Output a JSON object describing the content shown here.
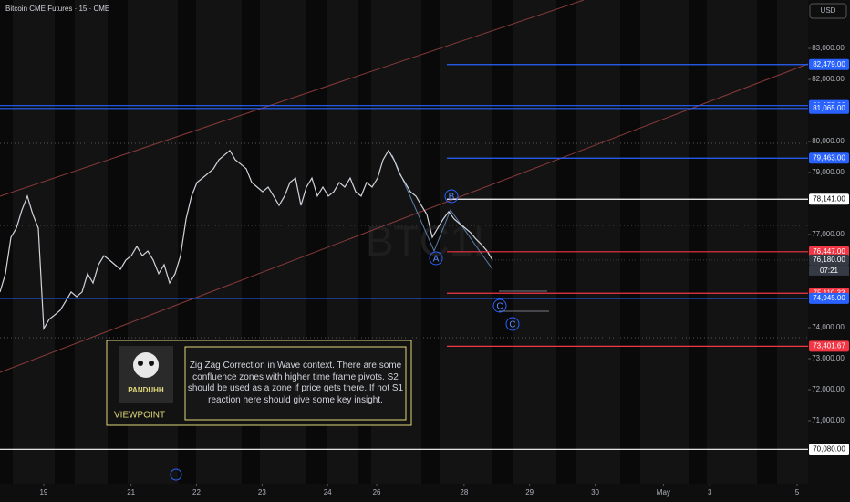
{
  "header": {
    "symbol": "Bitcoin CME Futures · 15 · CME",
    "currency": "USD",
    "watermark": "BTC1!"
  },
  "chart_data": {
    "type": "line",
    "color": "#d1d4dc",
    "xlim": [
      0,
      148
    ],
    "ylim": [
      68971,
      84559
    ],
    "xticks": [
      {
        "value": 8,
        "label": "19"
      },
      {
        "value": 24,
        "label": "21"
      },
      {
        "value": 36,
        "label": "22"
      },
      {
        "value": 48,
        "label": "23"
      },
      {
        "value": 60,
        "label": "24"
      },
      {
        "value": 69,
        "label": "26"
      },
      {
        "value": 85,
        "label": "28"
      },
      {
        "value": 97,
        "label": "29"
      },
      {
        "value": 109,
        "label": "30"
      },
      {
        "value": 121.5,
        "label": "May"
      },
      {
        "value": 130,
        "label": "3"
      },
      {
        "value": 146,
        "label": "5"
      }
    ],
    "yticks": [
      {
        "value": 83000,
        "label": "83,000.00"
      },
      {
        "value": 82000,
        "label": "82,000.00"
      },
      {
        "value": 80000,
        "label": "80,000.00"
      },
      {
        "value": 79000,
        "label": "79,000.00"
      },
      {
        "value": 77000,
        "label": "77,000.00"
      },
      {
        "value": 74000,
        "label": "74,000.00"
      },
      {
        "value": 73000,
        "label": "73,000.00"
      },
      {
        "value": 72000,
        "label": "72,000.00"
      },
      {
        "value": 71000,
        "label": "71,000.00"
      }
    ],
    "values": [
      75150,
      75740,
      76910,
      77210,
      77790,
      78240,
      77650,
      77210,
      73970,
      74270,
      74410,
      74560,
      74850,
      75150,
      75000,
      75150,
      75740,
      75440,
      76030,
      76320,
      76180,
      76030,
      75880,
      76180,
      76320,
      76620,
      76320,
      76470,
      76180,
      75740,
      76030,
      75440,
      75740,
      76320,
      77500,
      78240,
      78680,
      78820,
      78970,
      79120,
      79410,
      79560,
      79710,
      79410,
      79270,
      79120,
      78680,
      78530,
      78380,
      78530,
      78240,
      77940,
      78240,
      78680,
      78820,
      77940,
      78530,
      78820,
      78240,
      78530,
      78240,
      78380,
      78680,
      78530,
      78820,
      78380,
      78240,
      78680,
      78530,
      78820,
      79410,
      79710,
      79410,
      78970,
      78680,
      78380,
      78240,
      77940,
      77650,
      76910,
      77210,
      77500,
      77740,
      77500,
      77350,
      77210,
      77060,
      76850,
      76680,
      76470,
      76180
    ],
    "levels": [
      {
        "value": 82479,
        "label": "82,479.00",
        "color": "#2962ff",
        "span": "partial"
      },
      {
        "value": 81157,
        "label": "81,157.00",
        "color": "#2962ff",
        "span": "full"
      },
      {
        "value": 81065,
        "label": "81,065.00",
        "color": "#2962ff",
        "span": "full"
      },
      {
        "value": 79463,
        "label": "79,463.00",
        "color": "#2962ff",
        "span": "partial"
      },
      {
        "value": 78141,
        "label": "78,141.00",
        "color": "#ffffff",
        "span": "partial"
      },
      {
        "value": 76447,
        "label": "76,447.00",
        "color": "#f23645",
        "span": "partial"
      },
      {
        "value": 76180,
        "label": "76,180.00",
        "color": "#363a45",
        "span": "none"
      },
      {
        "value": 75110.33,
        "label": "75,110.33",
        "color": "#f23645",
        "span": "partial"
      },
      {
        "value": 74945,
        "label": "74,945.00",
        "color": "#2962ff",
        "span": "full"
      },
      {
        "value": 73401.67,
        "label": "73,401.67",
        "color": "#f23645",
        "span": "partial"
      },
      {
        "value": 70080,
        "label": "70,080.00",
        "color": "#ffffff",
        "span": "full"
      }
    ],
    "countdown": "07:21",
    "wave_labels": [
      "A",
      "B",
      "C",
      "C"
    ]
  },
  "annotation": {
    "text": "Zig Zag Correction in Wave context. There are some confluence zones with higher time frame pivots.  S2  should be used as a zone if price gets there. If not S1 reaction here should give some key insight.",
    "brand": "PANDUHH",
    "caption": "VIEWPOINT"
  }
}
